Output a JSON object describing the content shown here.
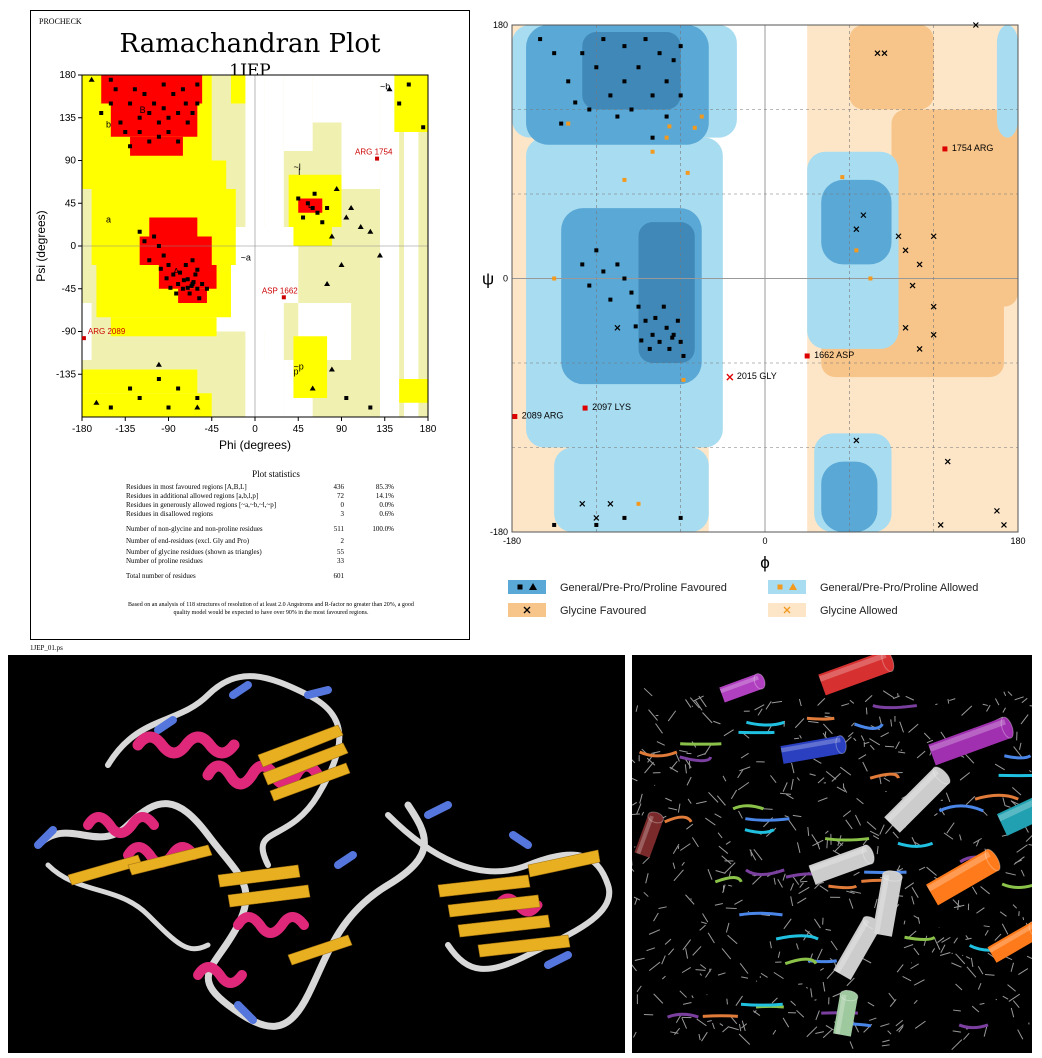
{
  "procheck_panel": {
    "program": "PROCHECK",
    "title": "Ramachandran Plot",
    "subtitle": "1JEP",
    "xlabel": "Phi (degrees)",
    "ylabel": "Psi (degrees)",
    "file_name": "1JEP_01.ps",
    "stats_heading": "Plot statistics",
    "stats_rows": [
      {
        "label": "Residues in most favoured regions  [A,B,L]",
        "count": "436",
        "pct": "85.3%"
      },
      {
        "label": "Residues in additional allowed regions  [a,b,l,p]",
        "count": "72",
        "pct": "14.1%"
      },
      {
        "label": "Residues in generously allowed regions  [~a,~b,~l,~p]",
        "count": "0",
        "pct": "0.0%"
      },
      {
        "label": "Residues in disallowed regions",
        "count": "3",
        "pct": "0.6%"
      },
      {
        "label": "Number of non-glycine and non-proline residues",
        "count": "511",
        "pct": "100.0%"
      },
      {
        "label": "Number of end-residues (excl. Gly and Pro)",
        "count": "2",
        "pct": ""
      },
      {
        "label": "Number of glycine residues (shown as triangles)",
        "count": "55",
        "pct": ""
      },
      {
        "label": "Number of proline residues",
        "count": "33",
        "pct": ""
      },
      {
        "label": "Total number of residues",
        "count": "601",
        "pct": ""
      }
    ],
    "footnote": "Based on an analysis of 118 structures of resolution of at least 2.0 Angstroms and R-factor no greater than 20%, a good quality model would be expected to have over 90% in the most favoured regions.",
    "region_labels": [
      "A",
      "B",
      "L",
      "a",
      "b",
      "l",
      "p",
      "~a",
      "~b",
      "~l",
      "~p"
    ],
    "region_colors": {
      "core": "#ff0000",
      "allowed": "#ffff00",
      "generous": "#f0f0b0",
      "disallowed": "#ffffff"
    }
  },
  "molprobity_panel": {
    "xlabel": "ϕ",
    "ylabel": "ψ",
    "legend": [
      {
        "label": "General/Pre-Pro/Proline Favoured",
        "color": "#5aa8d6",
        "symbols": [
          "square",
          "triangle"
        ]
      },
      {
        "label": "General/Pre-Pro/Proline Allowed",
        "color": "#a8dcf0",
        "symbols": [
          "square",
          "triangle"
        ]
      },
      {
        "label": "Glycine Favoured",
        "color": "#f7c58a",
        "symbols": [
          "x"
        ]
      },
      {
        "label": "Glycine Allowed",
        "color": "#fde6c8",
        "symbols": [
          "x"
        ]
      }
    ]
  },
  "chart_data": [
    {
      "type": "scatter",
      "title": "Ramachandran Plot",
      "subtitle": "1JEP",
      "xlabel": "Phi (degrees)",
      "ylabel": "Psi (degrees)",
      "xlim": [
        -180,
        180
      ],
      "ylim": [
        -180,
        180
      ],
      "xticks": [
        -180,
        -135,
        -90,
        -45,
        0,
        45,
        90,
        135,
        180
      ],
      "yticks": [
        180,
        135,
        90,
        45,
        0,
        -45,
        -90,
        -135
      ],
      "grid": false,
      "labeled_outliers": [
        {
          "label": "ARG 1754",
          "x": 127,
          "y": 92
        },
        {
          "label": "ASP 1662",
          "x": 30,
          "y": -54
        },
        {
          "label": "ARG 2089",
          "x": -178,
          "y": -97
        }
      ],
      "points": [
        [
          -72,
          150
        ],
        [
          -80,
          140
        ],
        [
          -90,
          135
        ],
        [
          -100,
          130
        ],
        [
          -110,
          140
        ],
        [
          -120,
          135
        ],
        [
          -130,
          150
        ],
        [
          -125,
          165
        ],
        [
          -115,
          160
        ],
        [
          -105,
          150
        ],
        [
          -95,
          145
        ],
        [
          -85,
          160
        ],
        [
          -75,
          165
        ],
        [
          -65,
          140
        ],
        [
          -60,
          150
        ],
        [
          -140,
          130
        ],
        [
          -135,
          120
        ],
        [
          -150,
          150
        ],
        [
          -145,
          165
        ],
        [
          -120,
          120
        ],
        [
          -100,
          115
        ],
        [
          -90,
          120
        ],
        [
          -70,
          130
        ],
        [
          -80,
          110
        ],
        [
          -110,
          110
        ],
        [
          -130,
          105
        ],
        [
          -95,
          170
        ],
        [
          -60,
          170
        ],
        [
          -150,
          175
        ],
        [
          -160,
          140
        ],
        [
          -65,
          -40
        ],
        [
          -60,
          -45
        ],
        [
          -70,
          -35
        ],
        [
          -75,
          -45
        ],
        [
          -62,
          -30
        ],
        [
          -68,
          -50
        ],
        [
          -80,
          -40
        ],
        [
          -85,
          -30
        ],
        [
          -90,
          -20
        ],
        [
          -95,
          -10
        ],
        [
          -100,
          0
        ],
        [
          -105,
          10
        ],
        [
          -110,
          -15
        ],
        [
          -60,
          -25
        ],
        [
          -55,
          -40
        ],
        [
          -58,
          -55
        ],
        [
          -72,
          -20
        ],
        [
          -78,
          -28
        ],
        [
          -82,
          -50
        ],
        [
          -66,
          -42
        ],
        [
          -64,
          -38
        ],
        [
          -70,
          -44
        ],
        [
          -74,
          -36
        ],
        [
          -88,
          -44
        ],
        [
          -92,
          -34
        ],
        [
          -98,
          -24
        ],
        [
          -115,
          5
        ],
        [
          -120,
          15
        ],
        [
          -50,
          -45
        ],
        [
          -65,
          -15
        ],
        [
          60,
          40
        ],
        [
          55,
          45
        ],
        [
          65,
          35
        ],
        [
          50,
          30
        ],
        [
          70,
          25
        ],
        [
          45,
          50
        ],
        [
          62,
          55
        ],
        [
          75,
          40
        ],
        [
          -80,
          -150
        ],
        [
          -120,
          -160
        ],
        [
          -90,
          -170
        ],
        [
          -150,
          -170
        ],
        [
          -60,
          -160
        ],
        [
          -100,
          -140
        ],
        [
          -130,
          -150
        ],
        [
          150,
          150
        ],
        [
          175,
          125
        ],
        [
          160,
          170
        ],
        [
          95,
          -160
        ],
        [
          120,
          -170
        ]
      ],
      "glycines": [
        [
          80,
          10
        ],
        [
          90,
          -20
        ],
        [
          95,
          30
        ],
        [
          110,
          20
        ],
        [
          85,
          60
        ],
        [
          100,
          40
        ],
        [
          120,
          15
        ],
        [
          75,
          -40
        ],
        [
          130,
          -10
        ],
        [
          -165,
          -165
        ],
        [
          60,
          -150
        ],
        [
          80,
          -130
        ],
        [
          140,
          165
        ],
        [
          -170,
          175
        ],
        [
          -100,
          -125
        ],
        [
          -60,
          -170
        ]
      ]
    },
    {
      "type": "scatter",
      "xlabel": "ϕ",
      "ylabel": "ψ",
      "xlim": [
        -180,
        180
      ],
      "ylim": [
        -180,
        180
      ],
      "xticks": [
        -180,
        0,
        180
      ],
      "yticks": [
        180,
        0,
        -180
      ],
      "grid": true,
      "labeled_outliers": [
        {
          "label": "1754 ARG",
          "x": 128,
          "y": 92,
          "marker": "square"
        },
        {
          "label": "1662 ASP",
          "x": 30,
          "y": -55,
          "marker": "square"
        },
        {
          "label": "2015 GLY",
          "x": -25,
          "y": -70,
          "marker": "x"
        },
        {
          "label": "2097 LYS",
          "x": -128,
          "y": -92,
          "marker": "square"
        },
        {
          "label": "2089 ARG",
          "x": -178,
          "y": -98,
          "marker": "square"
        }
      ],
      "points": [
        [
          -70,
          140
        ],
        [
          -80,
          130
        ],
        [
          -90,
          150
        ],
        [
          -100,
          140
        ],
        [
          -110,
          130
        ],
        [
          -120,
          150
        ],
        [
          -130,
          160
        ],
        [
          -140,
          140
        ],
        [
          -75,
          160
        ],
        [
          -85,
          170
        ],
        [
          -65,
          155
        ],
        [
          -60,
          165
        ],
        [
          -95,
          120
        ],
        [
          -105,
          115
        ],
        [
          -125,
          120
        ],
        [
          -135,
          125
        ],
        [
          -150,
          160
        ],
        [
          -160,
          170
        ],
        [
          -115,
          170
        ],
        [
          -100,
          165
        ],
        [
          -70,
          115
        ],
        [
          -60,
          130
        ],
        [
          -145,
          110
        ],
        [
          -80,
          100
        ],
        [
          -65,
          -40
        ],
        [
          -60,
          -45
        ],
        [
          -70,
          -35
        ],
        [
          -75,
          -45
        ],
        [
          -62,
          -30
        ],
        [
          -68,
          -50
        ],
        [
          -80,
          -40
        ],
        [
          -85,
          -30
        ],
        [
          -90,
          -20
        ],
        [
          -95,
          -10
        ],
        [
          -100,
          0
        ],
        [
          -105,
          10
        ],
        [
          -110,
          -15
        ],
        [
          -58,
          -55
        ],
        [
          -72,
          -20
        ],
        [
          -78,
          -28
        ],
        [
          -82,
          -50
        ],
        [
          -66,
          -42
        ],
        [
          -88,
          -44
        ],
        [
          -92,
          -34
        ],
        [
          -115,
          5
        ],
        [
          -120,
          20
        ],
        [
          -125,
          -5
        ],
        [
          -130,
          10
        ],
        [
          -150,
          -175
        ],
        [
          -100,
          -170
        ],
        [
          -120,
          -175
        ],
        [
          -60,
          -170
        ]
      ],
      "orange_points": [
        [
          -68,
          108
        ],
        [
          -70,
          100
        ],
        [
          -80,
          90
        ],
        [
          -100,
          70
        ],
        [
          -150,
          0
        ],
        [
          -140,
          110
        ],
        [
          -50,
          107
        ],
        [
          -90,
          -160
        ],
        [
          55,
          72
        ],
        [
          65,
          20
        ],
        [
          75,
          0
        ],
        [
          -58,
          -72
        ],
        [
          -45,
          115
        ],
        [
          -55,
          75
        ]
      ],
      "glycines": [
        [
          80,
          160
        ],
        [
          85,
          160
        ],
        [
          150,
          180
        ],
        [
          120,
          30
        ],
        [
          95,
          30
        ],
        [
          100,
          20
        ],
        [
          110,
          10
        ],
        [
          120,
          -20
        ],
        [
          105,
          -5
        ],
        [
          100,
          -35
        ],
        [
          110,
          -50
        ],
        [
          120,
          -40
        ],
        [
          70,
          45
        ],
        [
          65,
          35
        ],
        [
          -105,
          -35
        ],
        [
          -110,
          -160
        ],
        [
          -120,
          -170
        ],
        [
          -130,
          -160
        ],
        [
          65,
          -115
        ],
        [
          130,
          -130
        ],
        [
          165,
          -165
        ],
        [
          170,
          -175
        ],
        [
          125,
          -175
        ]
      ]
    }
  ]
}
